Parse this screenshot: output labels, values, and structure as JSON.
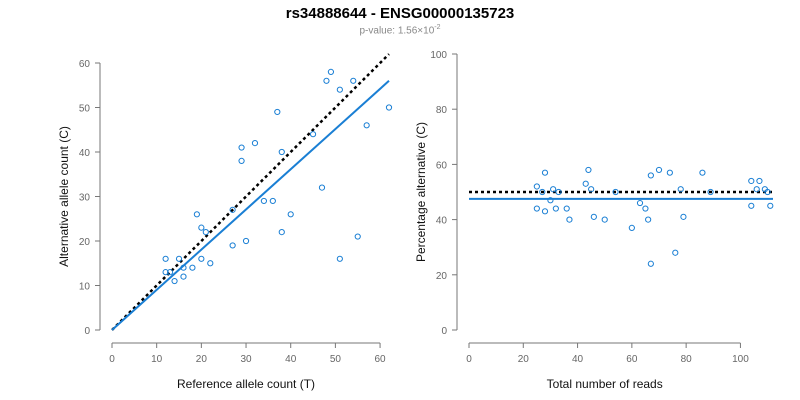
{
  "header": {
    "title": "rs34888644 - ENSG00000135723",
    "subtitle_prefix": "p-value: 1.56×10",
    "subtitle_exp": "-2"
  },
  "chart_data": [
    {
      "type": "scatter",
      "xlabel": "Reference allele count (T)",
      "ylabel": "Alternative allele count (C)",
      "xlim": [
        0,
        62
      ],
      "ylim": [
        0,
        60
      ],
      "xticks": [
        0,
        10,
        20,
        30,
        40,
        50,
        60
      ],
      "yticks": [
        0,
        10,
        20,
        30,
        40,
        50,
        60
      ],
      "grid": false,
      "point_color": "#1a7fd4",
      "fit_color": "#1a7fd4",
      "ref_color": "#000000",
      "points": [
        [
          12,
          16
        ],
        [
          12,
          13
        ],
        [
          13,
          13
        ],
        [
          14,
          11
        ],
        [
          15,
          16
        ],
        [
          16,
          12
        ],
        [
          16,
          14
        ],
        [
          18,
          14
        ],
        [
          19,
          26
        ],
        [
          20,
          16
        ],
        [
          20,
          23
        ],
        [
          21,
          22
        ],
        [
          22,
          15
        ],
        [
          27,
          19
        ],
        [
          27,
          27
        ],
        [
          29,
          38
        ],
        [
          29,
          41
        ],
        [
          30,
          20
        ],
        [
          32,
          42
        ],
        [
          34,
          29
        ],
        [
          36,
          29
        ],
        [
          37,
          49
        ],
        [
          38,
          22
        ],
        [
          38,
          40
        ],
        [
          40,
          26
        ],
        [
          45,
          44
        ],
        [
          47,
          32
        ],
        [
          48,
          56
        ],
        [
          49,
          58
        ],
        [
          51,
          16
        ],
        [
          51,
          54
        ],
        [
          54,
          56
        ],
        [
          55,
          21
        ],
        [
          57,
          46
        ],
        [
          62,
          50
        ]
      ],
      "fit_line": [
        [
          0,
          0
        ],
        [
          62,
          56
        ]
      ],
      "reference_line": [
        [
          0,
          0
        ],
        [
          62,
          62
        ]
      ]
    },
    {
      "type": "scatter",
      "xlabel": "Total number of reads",
      "ylabel": "Percentage alternative (C)",
      "xlim": [
        0,
        112
      ],
      "ylim": [
        0,
        100
      ],
      "xticks": [
        0,
        20,
        40,
        60,
        80,
        100
      ],
      "yticks": [
        0,
        20,
        40,
        60,
        80,
        100
      ],
      "grid": false,
      "point_color": "#1a7fd4",
      "fit_color": "#1a7fd4",
      "ref_color": "#000000",
      "points": [
        [
          25,
          52
        ],
        [
          25,
          44
        ],
        [
          27,
          50
        ],
        [
          28,
          43
        ],
        [
          28,
          57
        ],
        [
          30,
          47
        ],
        [
          31,
          51
        ],
        [
          32,
          44
        ],
        [
          33,
          50
        ],
        [
          36,
          44
        ],
        [
          37,
          40
        ],
        [
          43,
          53
        ],
        [
          44,
          58
        ],
        [
          45,
          51
        ],
        [
          46,
          41
        ],
        [
          50,
          40
        ],
        [
          54,
          50
        ],
        [
          60,
          37
        ],
        [
          63,
          46
        ],
        [
          65,
          44
        ],
        [
          66,
          40
        ],
        [
          67,
          24
        ],
        [
          67,
          56
        ],
        [
          70,
          58
        ],
        [
          74,
          57
        ],
        [
          76,
          28
        ],
        [
          78,
          51
        ],
        [
          79,
          41
        ],
        [
          86,
          57
        ],
        [
          89,
          50
        ],
        [
          104,
          45
        ],
        [
          104,
          54
        ],
        [
          106,
          51
        ],
        [
          107,
          54
        ],
        [
          109,
          51
        ],
        [
          110,
          50
        ],
        [
          111,
          45
        ]
      ],
      "fit_value": 47.5,
      "reference_value": 50
    }
  ]
}
